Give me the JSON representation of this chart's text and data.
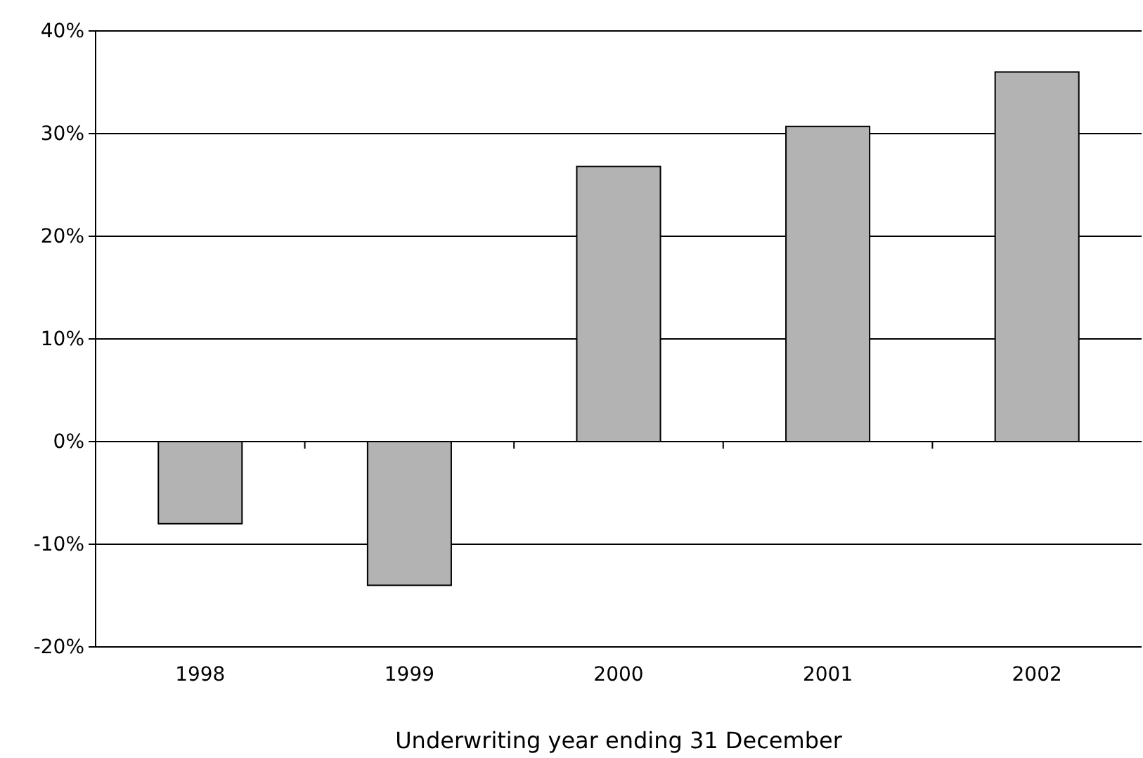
{
  "chart_data": {
    "type": "bar",
    "xlabel": "Underwriting year ending 31 December",
    "categories": [
      "1998",
      "1999",
      "2000",
      "2001",
      "2002"
    ],
    "values": [
      -8,
      -14,
      26.8,
      30.7,
      36
    ],
    "color": "#b3b3b3",
    "ylim": [
      -20,
      40
    ],
    "yticks": [
      {
        "value": -20,
        "label": "-20%"
      },
      {
        "value": -10,
        "label": "-10%"
      },
      {
        "value": 0,
        "label": "0%"
      },
      {
        "value": 10,
        "label": "10%"
      },
      {
        "value": 20,
        "label": "20%"
      },
      {
        "value": 30,
        "label": "30%"
      },
      {
        "value": 40,
        "label": "40%"
      }
    ],
    "grid": "y"
  }
}
